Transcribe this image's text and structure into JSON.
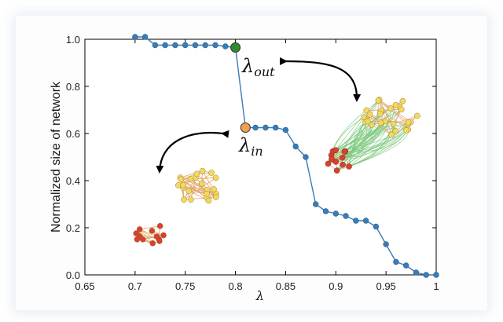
{
  "chart_data": {
    "type": "line",
    "xlabel": "λ",
    "ylabel": "Normalized size of network",
    "xlim": [
      0.65,
      1.0
    ],
    "ylim": [
      0.0,
      1.0
    ],
    "xticks": [
      "0.65",
      "0.7",
      "0.75",
      "0.8",
      "0.85",
      "0.9",
      "0.95",
      "1"
    ],
    "yticks": [
      "0.0",
      "0.2",
      "0.4",
      "0.6",
      "0.8",
      "1.0"
    ],
    "grid": false,
    "series": [
      {
        "color": "#3a7cb8",
        "x": [
          0.7,
          0.71,
          0.72,
          0.73,
          0.74,
          0.75,
          0.76,
          0.77,
          0.78,
          0.79,
          0.8,
          0.81,
          0.82,
          0.83,
          0.84,
          0.85,
          0.86,
          0.87,
          0.88,
          0.89,
          0.9,
          0.91,
          0.92,
          0.93,
          0.94,
          0.95,
          0.96,
          0.97,
          0.98,
          0.99,
          1.0
        ],
        "y": [
          1.01,
          1.01,
          0.975,
          0.975,
          0.975,
          0.975,
          0.975,
          0.975,
          0.975,
          0.97,
          0.965,
          0.625,
          0.625,
          0.625,
          0.625,
          0.615,
          0.545,
          0.5,
          0.3,
          0.27,
          0.26,
          0.25,
          0.23,
          0.23,
          0.205,
          0.13,
          0.055,
          0.04,
          0.01,
          0.0,
          0.0
        ]
      }
    ],
    "annotations": [
      {
        "label_main": "λ",
        "label_sub": "out",
        "x": 0.8,
        "y": 0.965,
        "marker_color": "#2e8b2e"
      },
      {
        "label_main": "λ",
        "label_sub": "in",
        "x": 0.81,
        "y": 0.625,
        "marker_color": "#f0a050"
      }
    ],
    "colors": {
      "line": "#3a7cb8",
      "node_red": "#d84030",
      "node_yellow": "#f2d860",
      "edge_green": "#7cc87c",
      "edge_orange": "#e0a060"
    }
  }
}
